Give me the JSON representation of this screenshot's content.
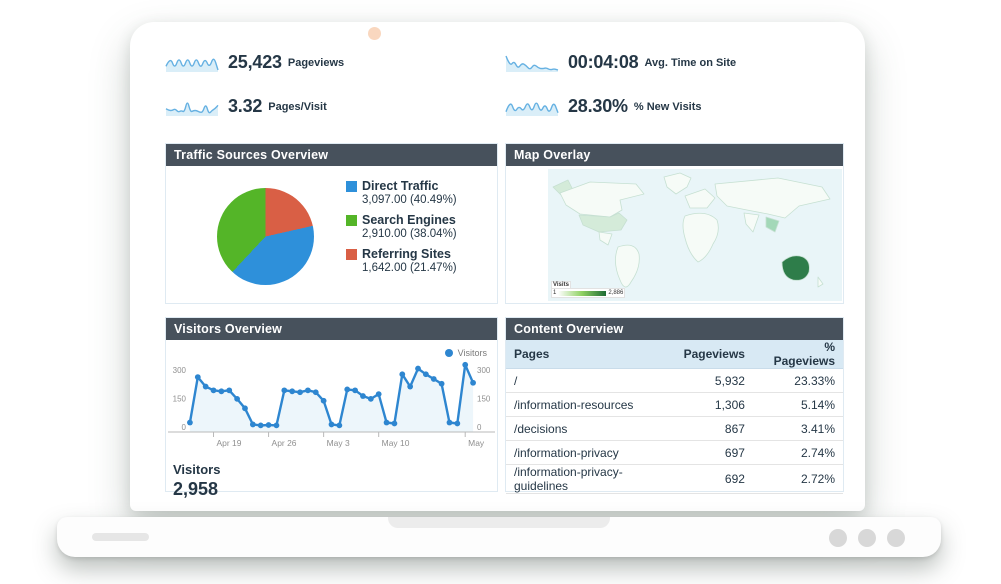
{
  "metrics": [
    {
      "value": "25,423",
      "label": "Pageviews",
      "spark": [
        7,
        17,
        4,
        17,
        4,
        17,
        4,
        17,
        4,
        16,
        5,
        18,
        3
      ]
    },
    {
      "value": "00:04:08",
      "label": "Avg. Time on Site",
      "spark": [
        16,
        7,
        12,
        5,
        10,
        8,
        4,
        9,
        6,
        5,
        6,
        4,
        5,
        4
      ]
    },
    {
      "value": "3.32",
      "label": "Pages/Visit",
      "spark": [
        9,
        8,
        8,
        9,
        7,
        8,
        7,
        14,
        7,
        8,
        8,
        7,
        7,
        12,
        6,
        8,
        9,
        11
      ]
    },
    {
      "value": "28.30%",
      "label": "% New Visits",
      "spark": [
        4,
        14,
        3,
        9,
        4,
        13,
        3,
        14,
        3,
        11,
        2,
        13,
        3
      ]
    }
  ],
  "traffic_panel": {
    "title": "Traffic Sources Overview",
    "legend": [
      {
        "label": "Direct Traffic",
        "value": "3,097.00 (40.49%)",
        "color": "#2e90da"
      },
      {
        "label": "Search Engines",
        "value": "2,910.00 (38.04%)",
        "color": "#54b528"
      },
      {
        "label": "Referring Sites",
        "value": "1,642.00 (21.47%)",
        "color": "#d95f45"
      }
    ]
  },
  "map_panel": {
    "title": "Map Overlay",
    "legend_title": "Visits",
    "legend_min": "1",
    "legend_max": "2,886"
  },
  "visitors_panel": {
    "title": "Visitors Overview",
    "legend_label": "Visitors",
    "summary_label": "Visitors",
    "summary_value": "2,958"
  },
  "content_panel": {
    "title": "Content Overview",
    "columns": [
      "Pages",
      "Pageviews",
      "% Pageviews"
    ],
    "rows": [
      {
        "page": "/",
        "pageviews": "5,932",
        "pct": "23.33%"
      },
      {
        "page": "/information-resources",
        "pageviews": "1,306",
        "pct": "5.14%"
      },
      {
        "page": "/decisions",
        "pageviews": "867",
        "pct": "3.41%"
      },
      {
        "page": "/information-privacy",
        "pageviews": "697",
        "pct": "2.74%"
      },
      {
        "page": "/information-privacy-guidelines",
        "pageviews": "692",
        "pct": "2.72%"
      }
    ]
  },
  "chart_data": [
    {
      "type": "pie",
      "title": "Traffic Sources Overview",
      "slices_clockwise_from_top": [
        {
          "label": "Referring Sites",
          "value": 1642.0,
          "pct": 21.47,
          "color": "#d95f45"
        },
        {
          "label": "Direct Traffic",
          "value": 3097.0,
          "pct": 40.49,
          "color": "#2e90da"
        },
        {
          "label": "Search Engines",
          "value": 2910.0,
          "pct": 38.04,
          "color": "#54b528"
        }
      ],
      "legend_position": "right"
    },
    {
      "type": "line",
      "title": "Visitors Overview",
      "series": [
        {
          "name": "Visitors",
          "color": "#2e86d0",
          "values": [
            25,
            265,
            215,
            195,
            190,
            195,
            150,
            100,
            15,
            10,
            12,
            10,
            195,
            190,
            185,
            195,
            185,
            140,
            15,
            10,
            200,
            195,
            165,
            150,
            175,
            25,
            20,
            280,
            215,
            310,
            280,
            255,
            230,
            25,
            20,
            330,
            235
          ]
        }
      ],
      "x_tick_labels": [
        "Apr 19",
        "Apr 26",
        "May 3",
        "May 10",
        "May"
      ],
      "x_tick_indices": [
        3,
        10,
        17,
        24,
        35
      ],
      "y_ticks": [
        0,
        150,
        300
      ],
      "ylim": [
        0,
        350
      ],
      "grid": false,
      "legend_position": "top-right",
      "total": "2,958"
    },
    {
      "type": "heatmap",
      "title": "Map Overlay",
      "metric": "Visits",
      "scale_min": 1,
      "scale_max": 2886,
      "highlighted_regions": [
        {
          "region": "Australia",
          "level": "high"
        },
        {
          "region": "United States",
          "level": "medium"
        },
        {
          "region": "Southeast Asia",
          "level": "medium"
        }
      ]
    }
  ]
}
